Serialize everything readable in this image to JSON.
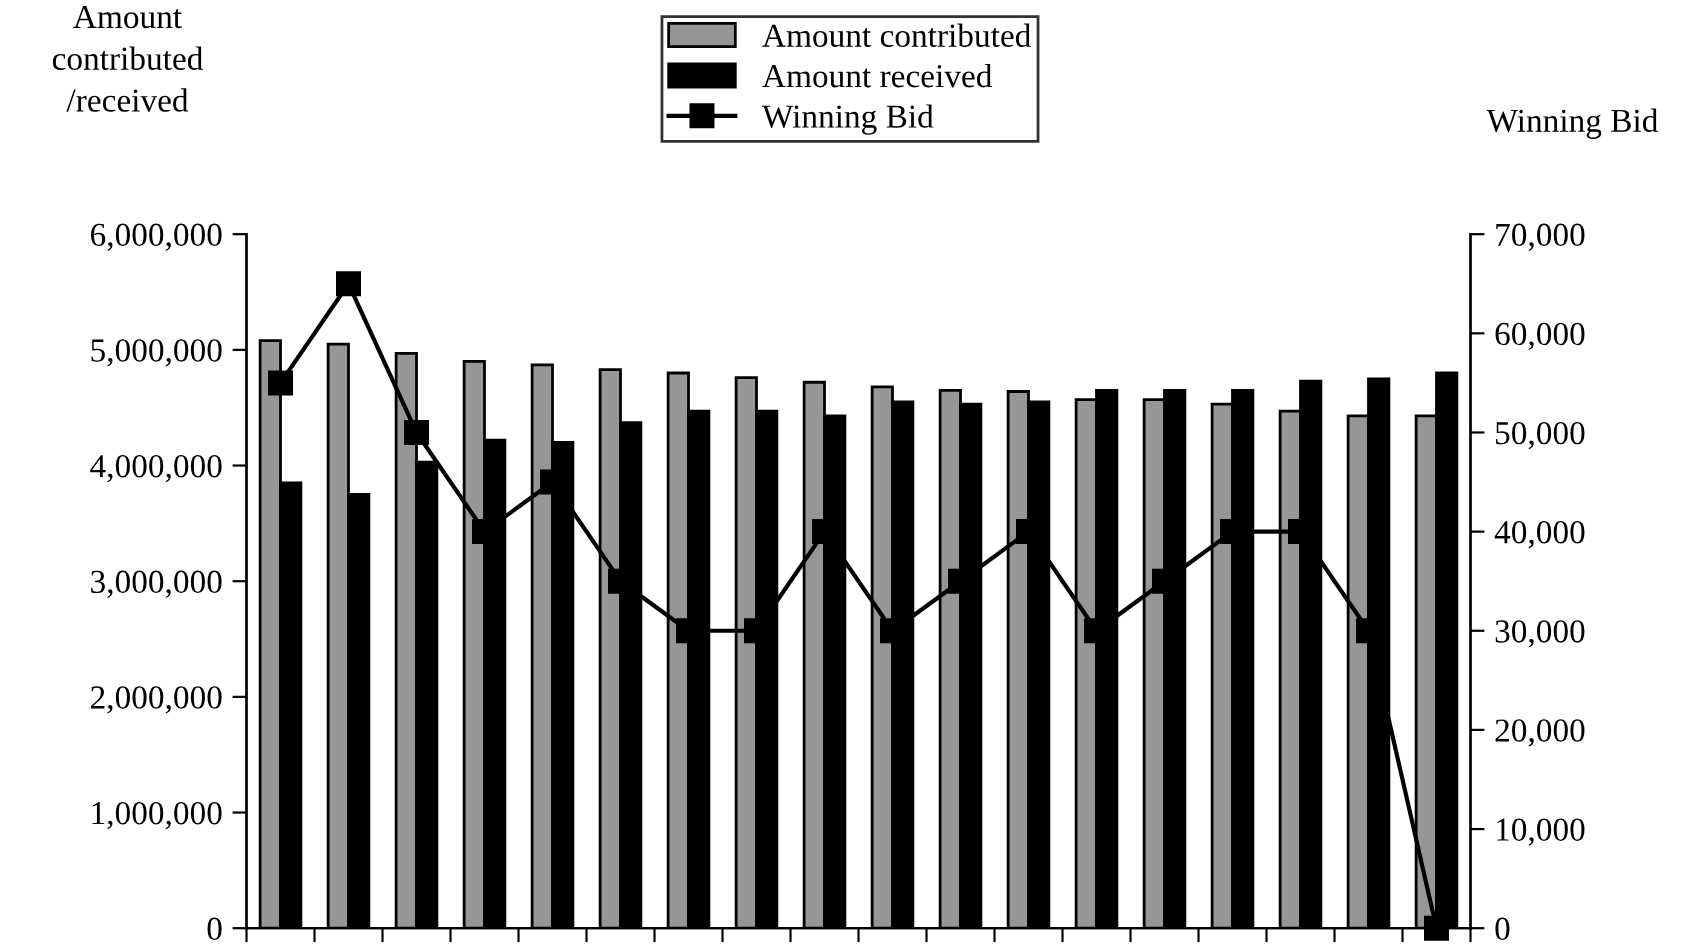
{
  "chart_data": {
    "type": "bar",
    "categories": [
      null,
      null,
      null,
      null,
      null,
      null,
      null,
      null,
      null,
      null,
      null,
      null,
      null,
      null,
      null,
      null,
      null,
      null
    ],
    "series": [
      {
        "name": "Amount contributed",
        "color": "#969696",
        "values": [
          5080000,
          5050000,
          4970000,
          4900000,
          4870000,
          4830000,
          4800000,
          4760000,
          4720000,
          4680000,
          4650000,
          4640000,
          4570000,
          4570000,
          4530000,
          4470000,
          4430000,
          4430000
        ]
      },
      {
        "name": "Amount received",
        "color": "#000000",
        "values": [
          3850000,
          3750000,
          4030000,
          4220000,
          4200000,
          4370000,
          4470000,
          4470000,
          4430000,
          4550000,
          4530000,
          4550000,
          4650000,
          4650000,
          4650000,
          4730000,
          4750000,
          4800000
        ]
      },
      {
        "name": "Winning Bid",
        "type": "line",
        "axis": "y2",
        "color": "#000000",
        "values": [
          55000,
          65000,
          50000,
          40000,
          45000,
          35000,
          30000,
          30000,
          40000,
          30000,
          35000,
          40000,
          30000,
          35000,
          40000,
          40000,
          30000,
          0
        ]
      }
    ],
    "ylabel": "Amount\ncontributed\n/received",
    "y2label": "Winning Bid",
    "ylim": [
      0,
      6000000
    ],
    "yticks": [
      {
        "value": 0,
        "label": "0"
      },
      {
        "value": 1000000,
        "label": "1,000,000"
      },
      {
        "value": 2000000,
        "label": "2,000,000"
      },
      {
        "value": 3000000,
        "label": "3,000,000"
      },
      {
        "value": 4000000,
        "label": "4,000,000"
      },
      {
        "value": 5000000,
        "label": "5,000,000"
      },
      {
        "value": 6000000,
        "label": "6,000,000"
      }
    ],
    "y2lim": [
      0,
      70000
    ],
    "y2ticks": [
      {
        "value": 0,
        "label": "0"
      },
      {
        "value": 10000,
        "label": "10,000"
      },
      {
        "value": 20000,
        "label": "20,000"
      },
      {
        "value": 30000,
        "label": "30,000"
      },
      {
        "value": 40000,
        "label": "40,000"
      },
      {
        "value": 50000,
        "label": "50,000"
      },
      {
        "value": 60000,
        "label": "60,000"
      },
      {
        "value": 70000,
        "label": "70,000"
      }
    ],
    "tick_labels": "y",
    "grid": false,
    "legend": "top",
    "marker": "square",
    "line_style": "solid"
  }
}
